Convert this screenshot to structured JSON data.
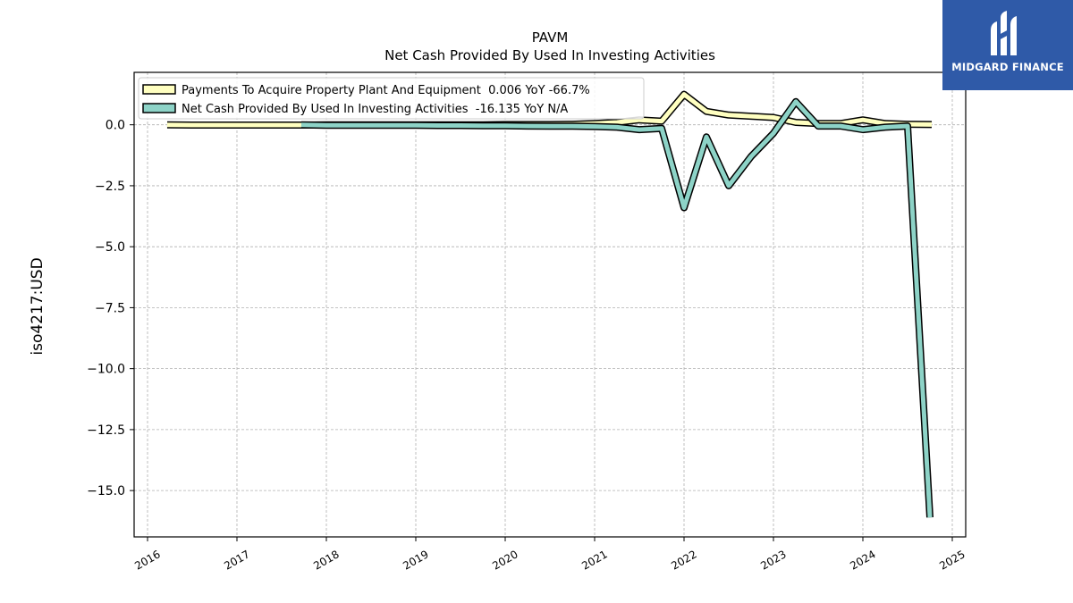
{
  "chart_data": {
    "type": "line",
    "title": "PAVM",
    "subtitle": "Net Cash Provided By Used In Investing Activities",
    "ylabel": "iso4217:USD",
    "xlim": [
      2015.85,
      2025.15
    ],
    "ylim": [
      -16.9,
      2.15
    ],
    "x_ticks": [
      "2016",
      "2017",
      "2018",
      "2019",
      "2020",
      "2021",
      "2022",
      "2023",
      "2024",
      "2025"
    ],
    "y_ticks": [
      "0.0",
      "−2.5",
      "−5.0",
      "−7.5",
      "−10.0",
      "−12.5",
      "−15.0"
    ],
    "y_tick_values": [
      0,
      -2.5,
      -5,
      -7.5,
      -10,
      -12.5,
      -15
    ],
    "grid": true,
    "legend_placement": "top-left",
    "series": [
      {
        "name": "Payments To Acquire Property Plant And Equipment  0.006 YoY -66.7%",
        "color": "#ffffc0",
        "x": [
          2016.22,
          2016.5,
          2016.75,
          2017.0,
          2017.25,
          2017.5,
          2017.72,
          2018.0,
          2018.25,
          2018.5,
          2018.75,
          2019.0,
          2019.25,
          2019.5,
          2019.75,
          2020.0,
          2020.25,
          2020.5,
          2020.75,
          2021.0,
          2021.25,
          2021.5,
          2021.75,
          2022.0,
          2022.25,
          2022.5,
          2022.75,
          2023.0,
          2023.25,
          2023.5,
          2023.75,
          2024.0,
          2024.25,
          2024.5,
          2024.77
        ],
        "y": [
          0.0,
          -0.01,
          -0.01,
          -0.01,
          -0.01,
          -0.01,
          -0.01,
          0.0,
          0.0,
          0.0,
          0.0,
          0.0,
          0.0,
          0.0,
          0.0,
          0.01,
          0.01,
          0.01,
          0.02,
          0.05,
          0.1,
          0.2,
          0.15,
          1.25,
          0.55,
          0.4,
          0.35,
          0.3,
          0.1,
          0.05,
          0.05,
          0.2,
          0.05,
          0.02,
          0.01
        ]
      },
      {
        "name": "Net Cash Provided By Used In Investing Activities  -16.135 YoY N/A",
        "color": "#8dd3c7",
        "x": [
          2017.72,
          2018.0,
          2018.25,
          2018.5,
          2018.75,
          2019.0,
          2019.25,
          2019.5,
          2019.75,
          2020.0,
          2020.25,
          2020.5,
          2020.75,
          2021.0,
          2021.25,
          2021.5,
          2021.75,
          2022.0,
          2022.25,
          2022.5,
          2022.75,
          2023.0,
          2023.25,
          2023.5,
          2023.75,
          2024.0,
          2024.25,
          2024.5,
          2024.75
        ],
        "y": [
          0.0,
          -0.02,
          -0.02,
          -0.02,
          -0.02,
          -0.02,
          -0.03,
          -0.03,
          -0.04,
          -0.04,
          -0.05,
          -0.06,
          -0.06,
          -0.07,
          -0.1,
          -0.2,
          -0.15,
          -3.4,
          -0.5,
          -2.5,
          -1.3,
          -0.35,
          0.95,
          -0.05,
          -0.05,
          -0.2,
          -0.1,
          -0.05,
          -16.1
        ]
      }
    ]
  },
  "logo": {
    "text": "MIDGARD FINANCE",
    "icon": "midgard-logo-icon"
  }
}
